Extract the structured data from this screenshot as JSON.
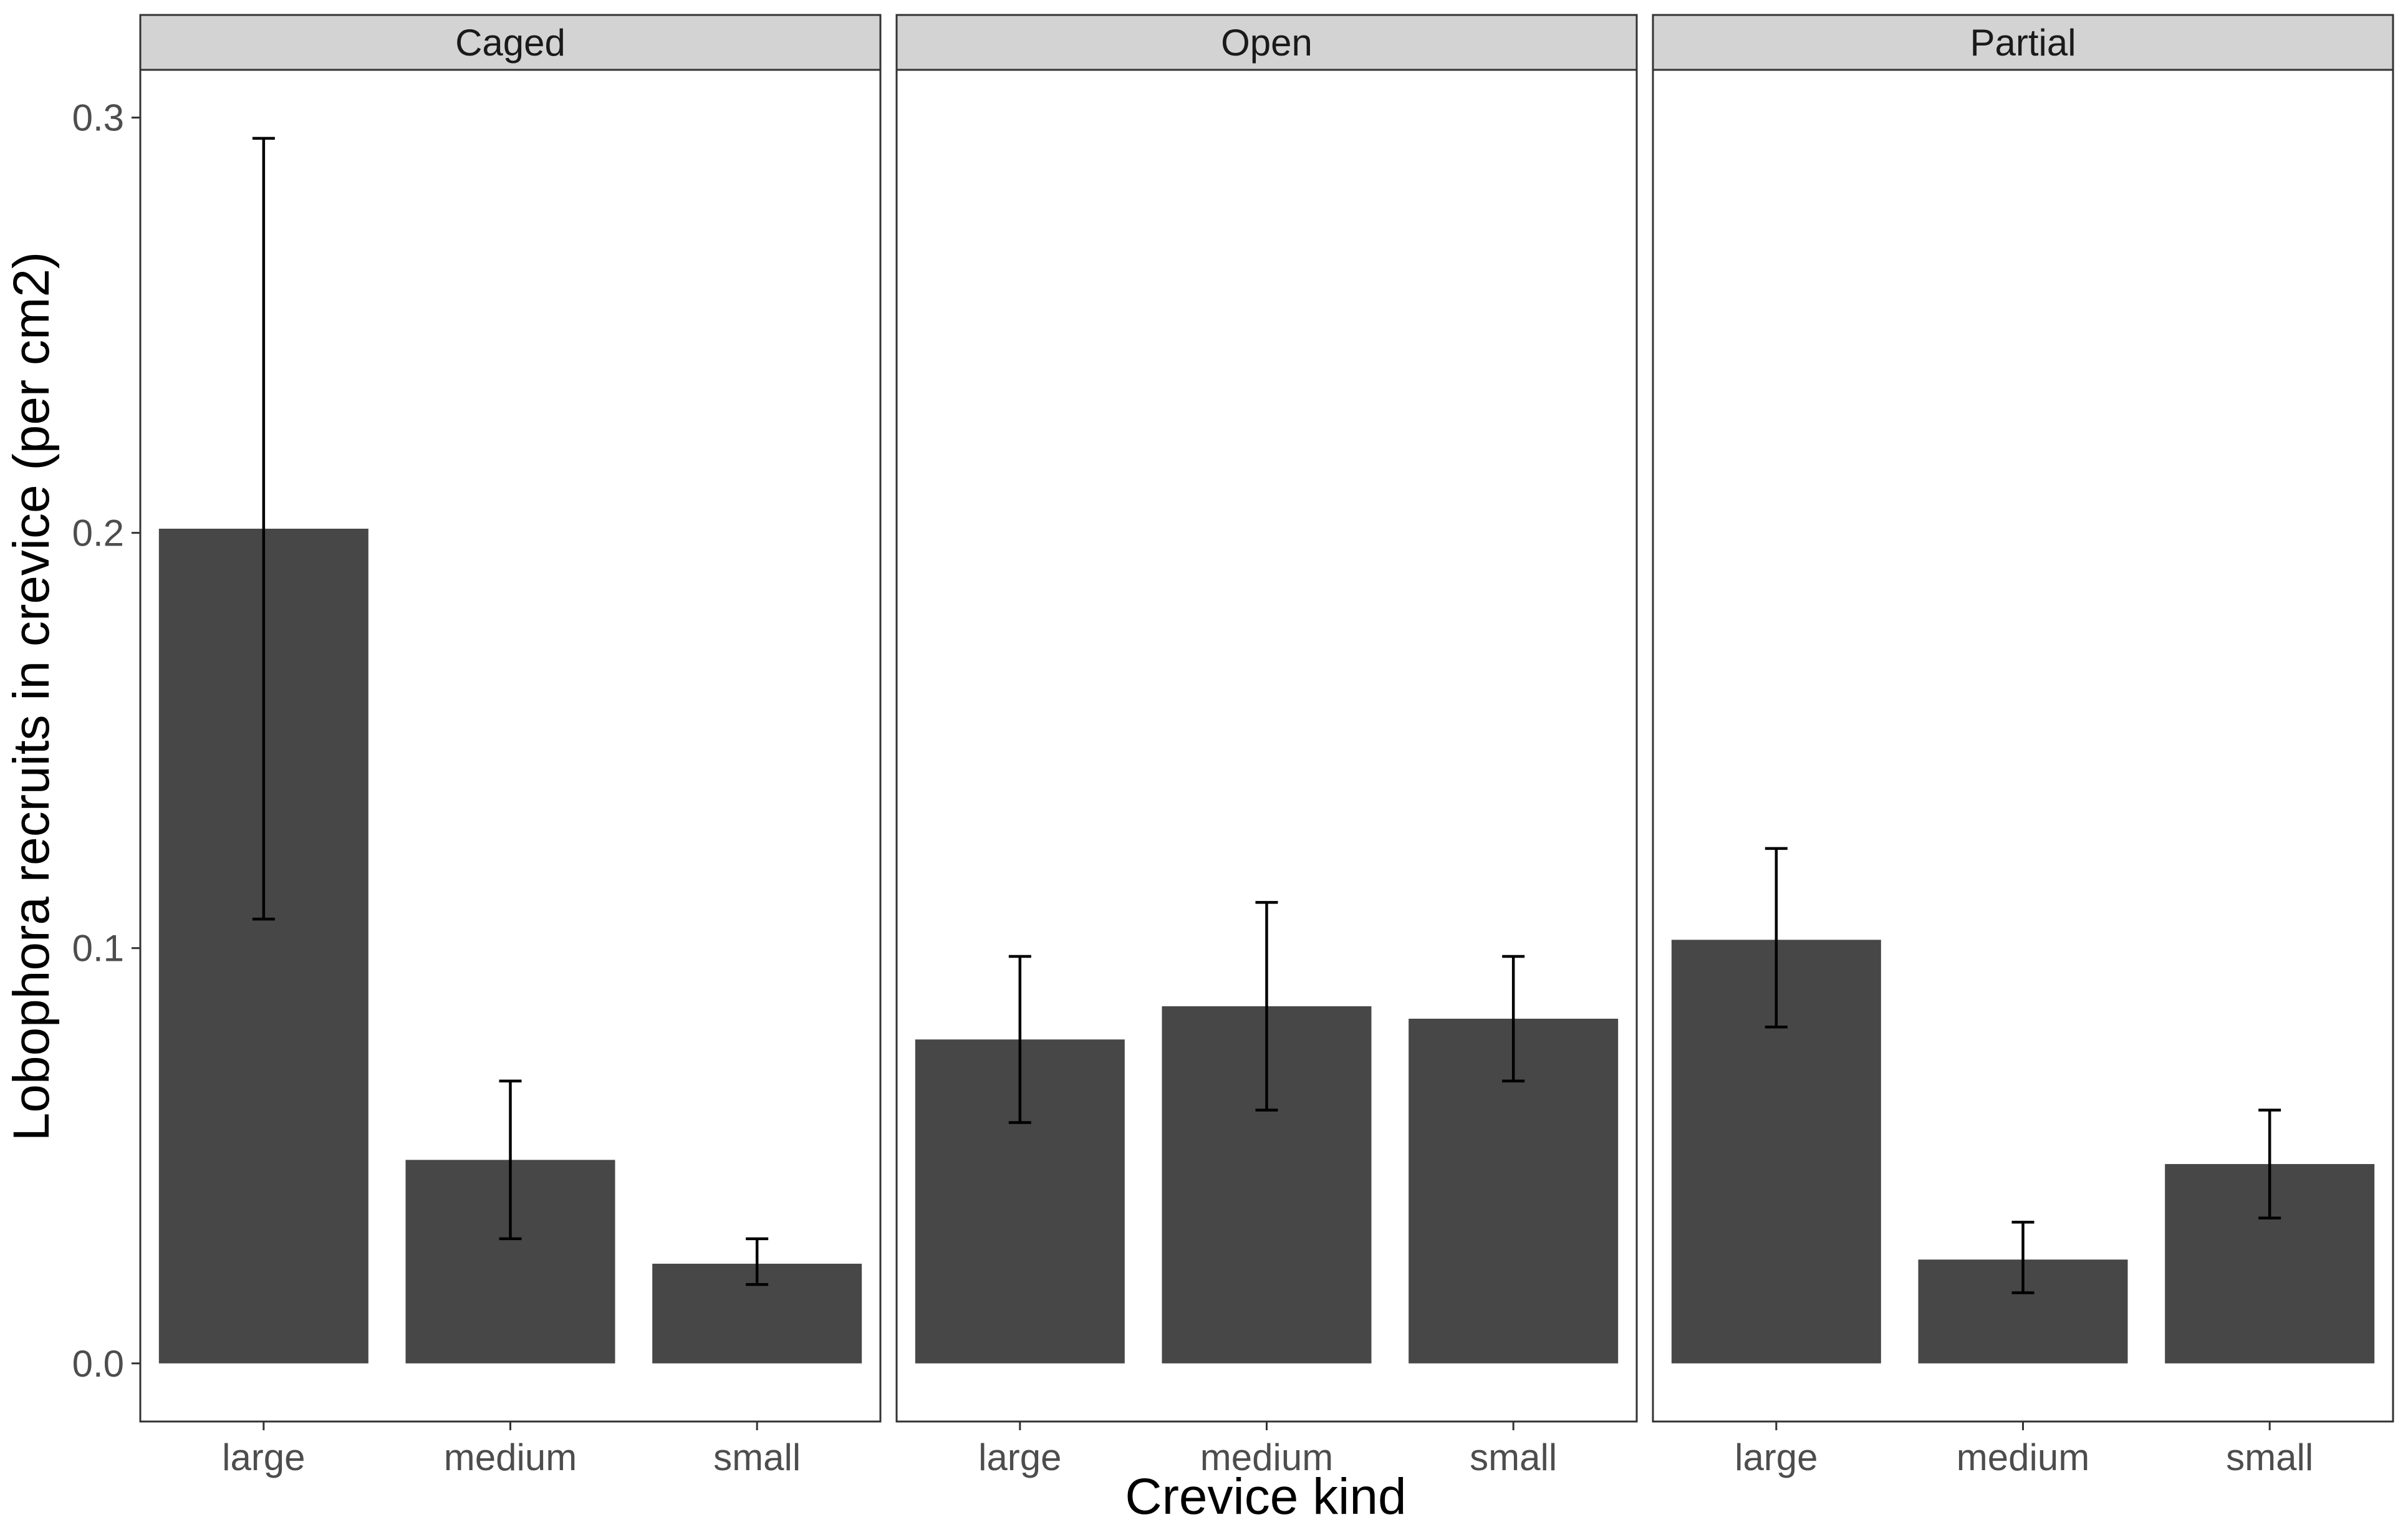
{
  "chart_data": {
    "type": "bar",
    "facet_variable_values": [
      "Caged",
      "Open",
      "Partial"
    ],
    "categories": [
      "large",
      "medium",
      "small"
    ],
    "xlabel": "Crevice kind",
    "ylabel": "Lobophora recruits in crevice (per cm2)",
    "ylim": [
      -0.014,
      0.3115
    ],
    "yticks": [
      0.0,
      0.1,
      0.2,
      0.3
    ],
    "ytick_labels": [
      "0.0",
      "0.1",
      "0.2",
      "0.3"
    ],
    "grid": false,
    "legend": "none",
    "facets": [
      {
        "name": "Caged",
        "values": [
          0.201,
          0.049,
          0.024
        ],
        "error_low": [
          0.107,
          0.03,
          0.019
        ],
        "error_high": [
          0.295,
          0.068,
          0.03
        ]
      },
      {
        "name": "Open",
        "values": [
          0.078,
          0.086,
          0.083
        ],
        "error_low": [
          0.058,
          0.061,
          0.068
        ],
        "error_high": [
          0.098,
          0.111,
          0.098
        ]
      },
      {
        "name": "Partial",
        "values": [
          0.102,
          0.025,
          0.048
        ],
        "error_low": [
          0.081,
          0.017,
          0.035
        ],
        "error_high": [
          0.124,
          0.034,
          0.061
        ]
      }
    ],
    "colors": {
      "bar": "#474747",
      "strip_fill": "#d3d3d3",
      "strip_border": "#333333",
      "panel_border": "#333333",
      "error_bar": "#000000"
    }
  }
}
